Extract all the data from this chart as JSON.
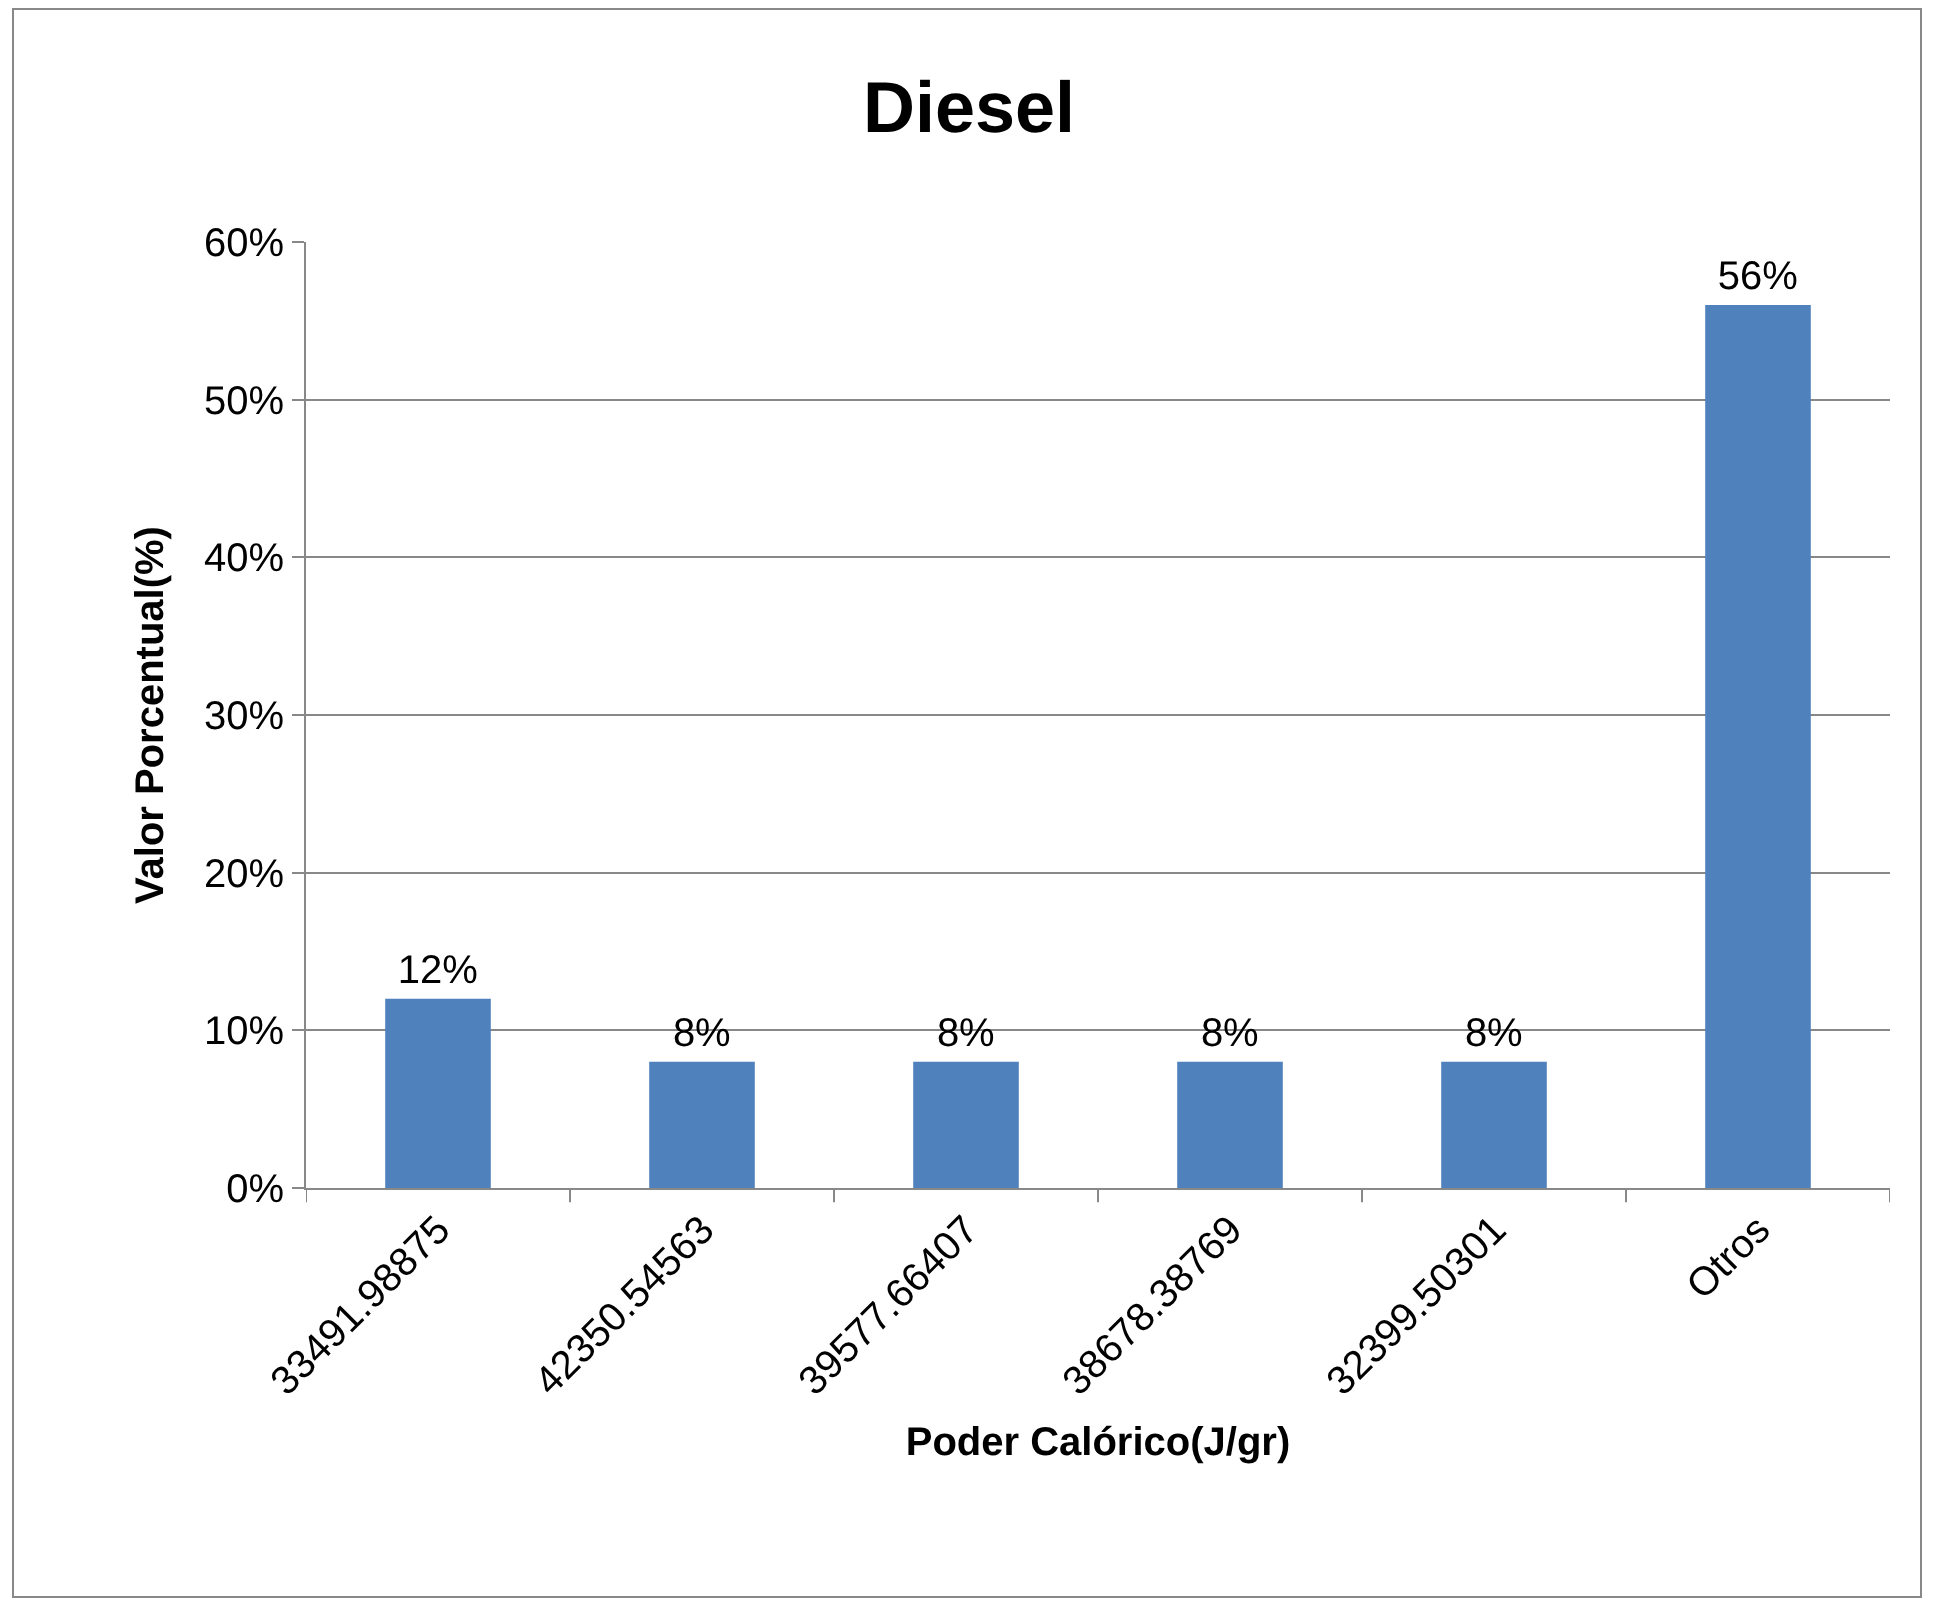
{
  "chart_data": {
    "type": "bar",
    "title": "Diesel",
    "xlabel": "Poder Calórico(J/gr)",
    "ylabel": "Valor Porcentual(%)",
    "categories": [
      "33491.98875",
      "42350.54563",
      "39577.66407",
      "38678.38769",
      "32399.50301",
      "Otros"
    ],
    "values": [
      12,
      8,
      8,
      8,
      8,
      56
    ],
    "value_labels": [
      "12%",
      "8%",
      "8%",
      "8%",
      "8%",
      "56%"
    ],
    "color": "#4f81bd",
    "ylim": [
      0,
      60
    ],
    "yticks": [
      {
        "value": 0,
        "label": "0%"
      },
      {
        "value": 10,
        "label": "10%"
      },
      {
        "value": 20,
        "label": "20%"
      },
      {
        "value": 30,
        "label": "30%"
      },
      {
        "value": 40,
        "label": "40%"
      },
      {
        "value": 50,
        "label": "50%"
      },
      {
        "value": 60,
        "label": "60%"
      }
    ],
    "grid": "y",
    "legend": false
  }
}
